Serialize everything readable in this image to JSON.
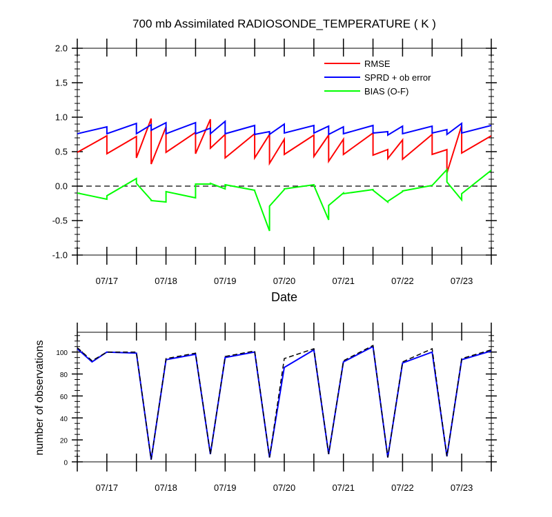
{
  "chart_data": [
    {
      "type": "line",
      "title": "700 mb Assimilated RADIOSONDE_TEMPERATURE ( K )",
      "xlabel": "Date",
      "ylabel": "",
      "xlim": [
        0,
        7.0
      ],
      "ylim": [
        -1.0,
        2.0
      ],
      "yticks": [
        "2.0",
        "1.5",
        "1.0",
        "0.5",
        "0.0",
        "-0.5",
        "-1.0"
      ],
      "x_ticks": [
        {
          "x": 0.5,
          "label": "07/17"
        },
        {
          "x": 1.5,
          "label": "07/18"
        },
        {
          "x": 2.5,
          "label": "07/19"
        },
        {
          "x": 3.5,
          "label": "07/20"
        },
        {
          "x": 4.5,
          "label": "07/21"
        },
        {
          "x": 5.5,
          "label": "07/22"
        },
        {
          "x": 6.5,
          "label": "07/23"
        }
      ],
      "zero_line": true,
      "legend_position": "top-right",
      "series": [
        {
          "name": "RMSE",
          "color": "#ff0000",
          "points": [
            [
              0,
              0.49
            ],
            [
              0.5,
              0.73
            ],
            [
              0.5,
              0.47
            ],
            [
              1.0,
              0.72
            ],
            [
              1.0,
              0.41
            ],
            [
              1.25,
              0.98
            ],
            [
              1.25,
              0.32
            ],
            [
              1.5,
              0.86
            ],
            [
              1.5,
              0.49
            ],
            [
              2.0,
              0.78
            ],
            [
              2.0,
              0.47
            ],
            [
              2.25,
              0.97
            ],
            [
              2.25,
              0.55
            ],
            [
              2.5,
              0.75
            ],
            [
              2.5,
              0.41
            ],
            [
              3.0,
              0.76
            ],
            [
              3.0,
              0.41
            ],
            [
              3.25,
              0.75
            ],
            [
              3.25,
              0.33
            ],
            [
              3.5,
              0.68
            ],
            [
              3.5,
              0.46
            ],
            [
              4.0,
              0.74
            ],
            [
              4.0,
              0.43
            ],
            [
              4.25,
              0.74
            ],
            [
              4.25,
              0.36
            ],
            [
              4.5,
              0.68
            ],
            [
              4.5,
              0.46
            ],
            [
              5.0,
              0.77
            ],
            [
              5.0,
              0.45
            ],
            [
              5.25,
              0.53
            ],
            [
              5.25,
              0.4
            ],
            [
              5.5,
              0.67
            ],
            [
              5.5,
              0.39
            ],
            [
              6.0,
              0.75
            ],
            [
              6.0,
              0.46
            ],
            [
              6.25,
              0.53
            ],
            [
              6.25,
              0.19
            ],
            [
              6.5,
              0.88
            ],
            [
              6.5,
              0.48
            ],
            [
              7.0,
              0.73
            ]
          ]
        },
        {
          "name": "SPRD + ob error",
          "color": "#0000ff",
          "points": [
            [
              0,
              0.76
            ],
            [
              0.5,
              0.86
            ],
            [
              0.5,
              0.76
            ],
            [
              1.0,
              0.91
            ],
            [
              1.0,
              0.76
            ],
            [
              1.25,
              0.89
            ],
            [
              1.25,
              0.81
            ],
            [
              1.5,
              0.92
            ],
            [
              1.5,
              0.76
            ],
            [
              2.0,
              0.92
            ],
            [
              2.0,
              0.76
            ],
            [
              2.25,
              0.84
            ],
            [
              2.25,
              0.76
            ],
            [
              2.5,
              0.94
            ],
            [
              2.5,
              0.76
            ],
            [
              3.0,
              0.88
            ],
            [
              3.0,
              0.75
            ],
            [
              3.25,
              0.79
            ],
            [
              3.25,
              0.75
            ],
            [
              3.5,
              0.9
            ],
            [
              3.5,
              0.77
            ],
            [
              4.0,
              0.88
            ],
            [
              4.0,
              0.77
            ],
            [
              4.25,
              0.87
            ],
            [
              4.25,
              0.75
            ],
            [
              4.5,
              0.86
            ],
            [
              4.5,
              0.76
            ],
            [
              5.0,
              0.88
            ],
            [
              5.0,
              0.77
            ],
            [
              5.25,
              0.79
            ],
            [
              5.25,
              0.74
            ],
            [
              5.5,
              0.87
            ],
            [
              5.5,
              0.76
            ],
            [
              6.0,
              0.87
            ],
            [
              6.0,
              0.77
            ],
            [
              6.25,
              0.82
            ],
            [
              6.25,
              0.75
            ],
            [
              6.5,
              0.91
            ],
            [
              6.5,
              0.77
            ],
            [
              7.0,
              0.88
            ]
          ]
        },
        {
          "name": "BIAS (O-F)",
          "color": "#00ff00",
          "points": [
            [
              0,
              -0.1
            ],
            [
              0.5,
              -0.19
            ],
            [
              0.5,
              -0.14
            ],
            [
              1.0,
              0.11
            ],
            [
              1.0,
              0.04
            ],
            [
              1.25,
              -0.2
            ],
            [
              1.25,
              -0.21
            ],
            [
              1.5,
              -0.23
            ],
            [
              1.5,
              -0.08
            ],
            [
              2.0,
              -0.17
            ],
            [
              2.0,
              0.03
            ],
            [
              2.25,
              0.03
            ],
            [
              2.25,
              0.04
            ],
            [
              2.5,
              -0.04
            ],
            [
              2.5,
              0.02
            ],
            [
              3.0,
              -0.06
            ],
            [
              3.0,
              -0.07
            ],
            [
              3.25,
              -0.65
            ],
            [
              3.25,
              -0.29
            ],
            [
              3.5,
              -0.05
            ],
            [
              3.5,
              -0.04
            ],
            [
              4.0,
              0.02
            ],
            [
              4.0,
              0.01
            ],
            [
              4.25,
              -0.49
            ],
            [
              4.25,
              -0.28
            ],
            [
              4.5,
              -0.1
            ],
            [
              4.5,
              -0.11
            ],
            [
              5.0,
              -0.05
            ],
            [
              5.0,
              -0.06
            ],
            [
              5.25,
              -0.23
            ],
            [
              5.25,
              -0.22
            ],
            [
              5.5,
              -0.08
            ],
            [
              5.5,
              -0.07
            ],
            [
              6.0,
              0.01
            ],
            [
              6.0,
              0.01
            ],
            [
              6.25,
              0.24
            ],
            [
              6.25,
              0.06
            ],
            [
              6.5,
              -0.2
            ],
            [
              6.5,
              -0.11
            ],
            [
              7.0,
              0.23
            ]
          ]
        }
      ]
    },
    {
      "type": "line",
      "title": "",
      "xlabel": "",
      "ylabel": "number of observations",
      "xlim": [
        0,
        7.0
      ],
      "ylim": [
        0,
        118
      ],
      "yticks": [
        "100",
        "80",
        "60",
        "40",
        "20",
        "0"
      ],
      "x_ticks": [
        {
          "x": 0.5,
          "label": "07/17"
        },
        {
          "x": 1.5,
          "label": "07/18"
        },
        {
          "x": 2.5,
          "label": "07/19"
        },
        {
          "x": 3.5,
          "label": "07/20"
        },
        {
          "x": 4.5,
          "label": "07/21"
        },
        {
          "x": 5.5,
          "label": "07/22"
        },
        {
          "x": 6.5,
          "label": "07/23"
        }
      ],
      "series": [
        {
          "color": "#0000ff",
          "dashed": false,
          "points": [
            [
              0,
              103
            ],
            [
              0.25,
              91
            ],
            [
              0.5,
              100
            ],
            [
              1.0,
              99
            ],
            [
              1.25,
              2
            ],
            [
              1.5,
              93
            ],
            [
              2.0,
              98
            ],
            [
              2.25,
              7
            ],
            [
              2.5,
              95
            ],
            [
              3.0,
              100
            ],
            [
              3.25,
              4
            ],
            [
              3.5,
              86
            ],
            [
              4.0,
              102
            ],
            [
              4.25,
              7
            ],
            [
              4.5,
              91
            ],
            [
              5.0,
              105
            ],
            [
              5.25,
              4
            ],
            [
              5.5,
              90
            ],
            [
              6.0,
              100
            ],
            [
              6.25,
              5
            ],
            [
              6.5,
              93
            ],
            [
              7.0,
              101
            ]
          ]
        },
        {
          "color": "#000000",
          "dashed": true,
          "points": [
            [
              0,
              104
            ],
            [
              0.25,
              92
            ],
            [
              0.5,
              100
            ],
            [
              1.0,
              100
            ],
            [
              1.25,
              2
            ],
            [
              1.5,
              94
            ],
            [
              2.0,
              99
            ],
            [
              2.25,
              7
            ],
            [
              2.5,
              96
            ],
            [
              3.0,
              101
            ],
            [
              3.25,
              4
            ],
            [
              3.5,
              94
            ],
            [
              4.0,
              103
            ],
            [
              4.25,
              7
            ],
            [
              4.5,
              92
            ],
            [
              5.0,
              106
            ],
            [
              5.25,
              4
            ],
            [
              5.5,
              91
            ],
            [
              6.0,
              103
            ],
            [
              6.25,
              5
            ],
            [
              6.5,
              94
            ],
            [
              7.0,
              102
            ]
          ]
        }
      ]
    }
  ]
}
